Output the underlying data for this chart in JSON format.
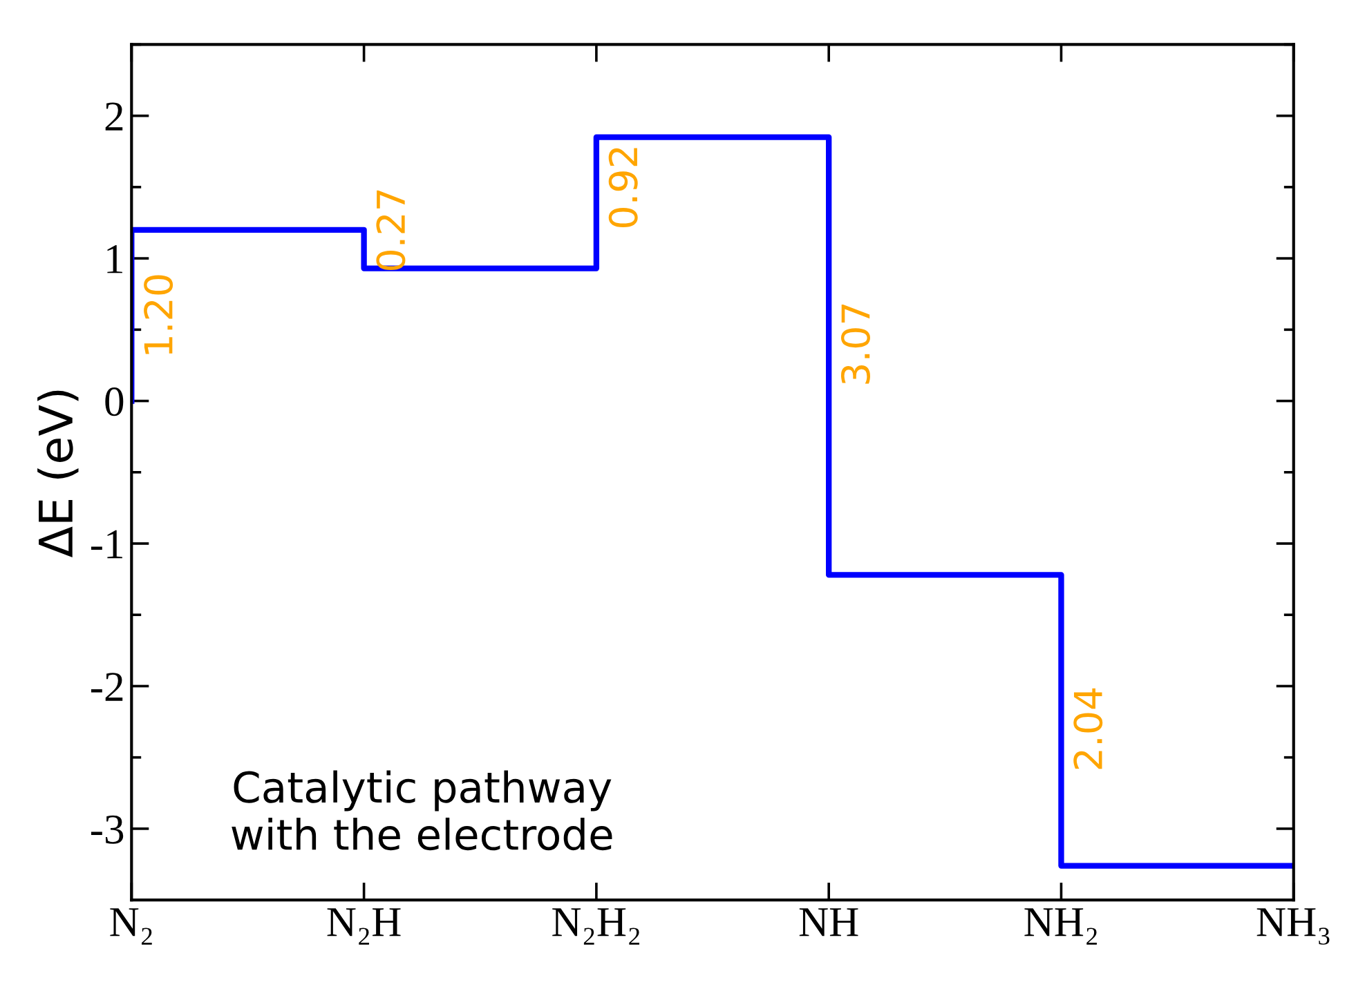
{
  "chart_data": {
    "type": "line",
    "ylabel": "ΔE (eV)",
    "categories": [
      "N₂",
      "N₂H",
      "N₂H₂",
      "NH",
      "NH₂",
      "NH₃"
    ],
    "series": [
      {
        "color": "#0000ff",
        "x": [
          "N₂",
          "N₂",
          "N₂H",
          "N₂H",
          "N₂H₂",
          "N₂H₂",
          "NH",
          "NH",
          "NH₂",
          "NH₂",
          "NH₃"
        ],
        "values": [
          0,
          1.2,
          1.2,
          0.93,
          0.93,
          1.85,
          1.85,
          -1.22,
          -1.22,
          -3.26,
          -3.26
        ]
      }
    ],
    "ylim": [
      -3.5,
      2.5
    ],
    "yticks": [
      -3,
      -2,
      -1,
      0,
      1,
      2
    ],
    "marker": "none",
    "line_style": "solid",
    "grid": false,
    "legend": false,
    "annotations": [
      {
        "text": "1.20",
        "x": "N₂",
        "y": 0.6
      },
      {
        "text": "0.27",
        "x": "N₂H",
        "y": 1.2
      },
      {
        "text": "0.92",
        "x": "N₂H₂",
        "y": 1.5
      },
      {
        "text": "3.07",
        "x": "NH",
        "y": 0.4
      },
      {
        "text": "2.04",
        "x": "NH₂",
        "y": -2.3
      },
      "Catalytic pathway\nwith the electrode"
    ]
  }
}
